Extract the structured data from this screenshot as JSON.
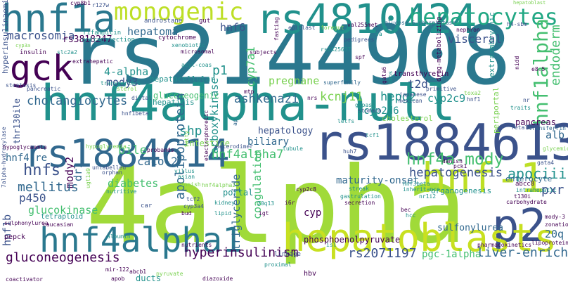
{
  "palette": {
    "dark_purple": "#440154",
    "indigo": "#3b528b",
    "slate_blue": "#31688e",
    "teal_blue": "#2a788e",
    "teal": "#21918c",
    "sea_green": "#22a884",
    "green": "#44bf70",
    "lime": "#7ad151",
    "yellow_green": "#bddf26",
    "yellow": "#fde725"
  },
  "words": [
    {
      "id": "rs2144908",
      "text": "rs2144908",
      "color": "#2a788e"
    },
    {
      "id": "4alpha",
      "text": "4alpha",
      "color": "#a0da39"
    },
    {
      "id": "hnf4alpha-null",
      "text": "hnf4alpha-null",
      "color": "#21918c"
    },
    {
      "id": "rs1884613",
      "text": "rs1884613",
      "color": "#3b528b"
    },
    {
      "id": "rs1884614",
      "text": "rs1884614",
      "color": "#31688e"
    },
    {
      "id": "rs4810424",
      "text": "rs4810424",
      "color": "#21918c"
    },
    {
      "id": "hnf1a",
      "text": "hnf1a",
      "color": "#2a788e"
    },
    {
      "id": "gck",
      "text": "gck",
      "color": "#440154"
    },
    {
      "id": "monogenic",
      "text": "monogenic",
      "color": "#bddf26"
    },
    {
      "id": "hepatocytes",
      "text": "hepatocytes",
      "color": "#22a884"
    },
    {
      "id": "hnf-1",
      "text": "hnf-1",
      "color": "#bddf26"
    },
    {
      "id": "p2",
      "text": "p2",
      "color": "#3b528b"
    },
    {
      "id": "hepatoblasts",
      "text": "hepatoblasts",
      "color": "#c8e020"
    },
    {
      "id": "hnf4alpha1",
      "text": "hnf4alpha1",
      "color": "#2a788e"
    },
    {
      "id": "hnf1alpha",
      "text": "hnf1alpha",
      "color": "#44bf70"
    },
    {
      "id": "endoderm",
      "text": "endoderm",
      "color": "#44bf70"
    },
    {
      "id": "macrosomia",
      "text": "macrosomia",
      "color": "#3b528b"
    },
    {
      "id": "hepatoma",
      "text": "hepatoma",
      "color": "#31688e"
    },
    {
      "id": "hnf6",
      "text": "hnf6",
      "color": "#3b528b"
    },
    {
      "id": "rs3818247",
      "text": "rs3818247",
      "color": "#440154"
    },
    {
      "id": "visceral",
      "text": "visceral",
      "color": "#3b528b"
    },
    {
      "id": "4-alpha",
      "text": "4-alpha",
      "color": "#21918c"
    },
    {
      "id": "p1",
      "text": "p1",
      "color": "#21918c"
    },
    {
      "id": "cyp7a1",
      "text": "cyp7a1",
      "color": "#44bf70"
    },
    {
      "id": "mody3",
      "text": "mody3",
      "color": "#3b528b"
    },
    {
      "id": "t2d",
      "text": "t2d",
      "color": "#3b528b"
    },
    {
      "id": "carboxykinase",
      "text": "carboxykinase",
      "color": "#21918c"
    },
    {
      "id": "pregnane",
      "text": "pregnane",
      "color": "#7ad151"
    },
    {
      "id": "kcnj11",
      "text": "kcnj11",
      "color": "#7ad151"
    },
    {
      "id": "hepg2",
      "text": "hepg2",
      "color": "#21918c"
    },
    {
      "id": "cyp2c9",
      "text": "cyp2c9",
      "color": "#21918c"
    },
    {
      "id": "ashkenazi",
      "text": "ashkenazi",
      "color": "#31688e"
    },
    {
      "id": "cholangiocytes",
      "text": "cholangiocytes",
      "color": "#31688e"
    },
    {
      "id": "gluconeogenic",
      "text": "gluconeogenic",
      "color": "#44bf70"
    },
    {
      "id": "cyp2d6",
      "text": "cyp2d6",
      "color": "#21918c"
    },
    {
      "id": "thr130ile",
      "text": "thr130ile",
      "color": "#3b528b"
    },
    {
      "id": "shp",
      "text": "shp",
      "color": "#21918c"
    },
    {
      "id": "hepatology",
      "text": "hepatology",
      "color": "#3b528b"
    },
    {
      "id": "apolipoprotein",
      "text": "apolipoprotein",
      "color": "#31688e"
    },
    {
      "id": "biliary",
      "text": "biliary",
      "color": "#31688e"
    },
    {
      "id": "bile",
      "text": "bile",
      "color": "#44bf70"
    },
    {
      "id": "hnf4alpha7",
      "text": "hnf4alpha7",
      "color": "#44bf70"
    },
    {
      "id": "hnf4a-mody",
      "text": "hnf4a-mody",
      "color": "#44bf70"
    },
    {
      "id": "apociii",
      "text": "apociii",
      "color": "#21918c"
    },
    {
      "id": "pxr",
      "text": "pxr",
      "color": "#3b528b"
    },
    {
      "id": "hepatogenesis",
      "text": "hepatogenesis",
      "color": "#3b528b"
    },
    {
      "id": "maturity-onset",
      "text": "maturity-onset",
      "color": "#31688e"
    },
    {
      "id": "caco-2",
      "text": "caco-2",
      "color": "#31688e"
    },
    {
      "id": "hnf4-re",
      "text": "hnf4-re",
      "color": "#31688e"
    },
    {
      "id": "hnfs",
      "text": "hnfs",
      "color": "#3b528b"
    },
    {
      "id": "mody2",
      "text": "mody2",
      "color": "#440154"
    },
    {
      "id": "dr1",
      "text": "dr1",
      "color": "#31688e"
    },
    {
      "id": "diabetes",
      "text": "diabetes",
      "color": "#44bf70"
    },
    {
      "id": "mellitus",
      "text": "mellitus",
      "color": "#31688e"
    },
    {
      "id": "p450",
      "text": "p450",
      "color": "#3b528b"
    },
    {
      "id": "glucokinase",
      "text": "glucokinase",
      "color": "#44bf70"
    },
    {
      "id": "coagulation",
      "text": "coagulation",
      "color": "#44bf70"
    },
    {
      "id": "triglyceride",
      "text": "triglyceride",
      "color": "#31688e"
    },
    {
      "id": "hnf1b",
      "text": "hnf1b",
      "color": "#3b528b"
    },
    {
      "id": "gluconeogenesis",
      "text": "gluconeogenesis",
      "color": "#440154"
    },
    {
      "id": "hyperinsulinism",
      "text": "hyperinsulinism",
      "color": "#440154"
    },
    {
      "id": "rs2071197",
      "text": "rs2071197",
      "color": "#3b528b"
    },
    {
      "id": "pgc-1alpha",
      "text": "pgc-1alpha",
      "color": "#44bf70"
    },
    {
      "id": "liver-enriched",
      "text": "liver-enriched",
      "color": "#31688e"
    },
    {
      "id": "20q",
      "text": "20q",
      "color": "#31688e"
    },
    {
      "id": "phosphoenolpyruvate",
      "text": "phosphoenolpyruvate",
      "color": "#440154"
    },
    {
      "id": "cholesterol",
      "text": "cholesterol",
      "color": "#7ad151"
    },
    {
      "id": "sulfonylurea",
      "text": "sulfonylurea",
      "color": "#31688e"
    },
    {
      "id": "enterocyte",
      "text": "enterocyte",
      "color": "#31688e"
    },
    {
      "id": "organogenesis",
      "text": "organogenesis",
      "color": "#21918c"
    },
    {
      "id": "pancreas",
      "text": "pancreas",
      "color": "#440154"
    },
    {
      "id": "alb",
      "text": "alb",
      "color": "#31688e"
    },
    {
      "id": "intestine",
      "text": "intestine",
      "color": "#7ad151"
    },
    {
      "id": "portal",
      "text": "portal",
      "color": "#21918c"
    },
    {
      "id": "cyp",
      "text": "cyp",
      "color": "#440154"
    },
    {
      "id": "hepatocellular",
      "text": "hepatocellular",
      "color": "#21918c"
    },
    {
      "id": "hepatitis",
      "text": "hepatitis",
      "color": "#21918c"
    },
    {
      "id": "extraembryonic",
      "text": "extraembryonic",
      "color": "#21918c"
    },
    {
      "id": "drug-metabolizing",
      "text": "drug-metabolizing",
      "color": "#440154"
    },
    {
      "id": "transthyretin",
      "text": "transthyretin",
      "color": "#440154"
    },
    {
      "id": "periportal",
      "text": "periportal",
      "color": "#7ad151"
    },
    {
      "id": "hyperinsulinaemic",
      "text": "hyperinsulinaemic",
      "color": "#3b528b"
    },
    {
      "id": "cyp8b1",
      "text": "cyp8b1",
      "color": "#440154"
    },
    {
      "id": "r127w",
      "text": "r127w",
      "color": "#3b528b"
    },
    {
      "id": "rifampicin",
      "text": "rifampicin",
      "color": "#21918c"
    },
    {
      "id": "cotransfection",
      "text": "cotransfection",
      "color": "#21918c"
    },
    {
      "id": "androstane",
      "text": "androstane",
      "color": "#3b528b"
    },
    {
      "id": "cytochrome",
      "text": "cytochrome",
      "color": "#440154"
    },
    {
      "id": "gut",
      "text": "gut",
      "color": "#440154"
    },
    {
      "id": "fasting",
      "text": "fasting",
      "color": "#440154"
    },
    {
      "id": "epiblast",
      "text": "epiblast",
      "color": "#3b528b"
    },
    {
      "id": "val255met",
      "text": "val255met",
      "color": "#440154"
    },
    {
      "id": "glucose-6-phosphatase",
      "text": "glucose-6-phosphatase",
      "color": "#31688e"
    },
    {
      "id": "foregut",
      "text": "foregut",
      "color": "#7ad151"
    },
    {
      "id": "pedigrees",
      "text": "pedigrees",
      "color": "#3b528b"
    },
    {
      "id": "rs2425637",
      "text": "rs2425637",
      "color": "#21918c"
    },
    {
      "id": "nephron",
      "text": "nephron",
      "color": "#440154"
    },
    {
      "id": "h4-sbm",
      "text": "h4-sbm",
      "color": "#3b528b"
    },
    {
      "id": "insulin",
      "text": "insulin",
      "color": "#440154"
    },
    {
      "id": "slc2a2",
      "text": "slc2a2",
      "color": "#21918c"
    },
    {
      "id": "xenobiotic",
      "text": "xenobiotic",
      "color": "#21918c"
    },
    {
      "id": "microsomal",
      "text": "microsomal",
      "color": "#440154"
    },
    {
      "id": "acyl-coas",
      "text": "acyl-coas",
      "color": "#21918c"
    },
    {
      "id": "subjects",
      "text": "subjects",
      "color": "#440154"
    },
    {
      "id": "extrahepatic",
      "text": "extrahepatic",
      "color": "#440154"
    },
    {
      "id": "transporters",
      "text": "transporters",
      "color": "#21918c"
    },
    {
      "id": "sterol",
      "text": "sterol",
      "color": "#7ad151"
    },
    {
      "id": "mtp",
      "text": "mtp",
      "color": "#440154"
    },
    {
      "id": "superfamily",
      "text": "superfamily",
      "color": "#31688e"
    },
    {
      "id": "steatosis",
      "text": "steatosis",
      "color": "#3b528b"
    },
    {
      "id": "pancreatic",
      "text": "pancreatic",
      "color": "#3b528b"
    },
    {
      "id": "distal",
      "text": "distal",
      "color": "#3b528b"
    },
    {
      "id": "nrs",
      "text": "nrs",
      "color": "#440154"
    },
    {
      "id": "japanese",
      "text": "japanese",
      "color": "#3b528b"
    },
    {
      "id": "mexican",
      "text": "mexican",
      "color": "#3b528b"
    },
    {
      "id": "hnf1",
      "text": "hnf1",
      "color": "#3b528b"
    },
    {
      "id": "toxa2",
      "text": "toxa2",
      "color": "#7ad151"
    },
    {
      "id": "primitive",
      "text": "primitive",
      "color": "#3b528b"
    },
    {
      "id": "traits",
      "text": "traits",
      "color": "#21918c"
    },
    {
      "id": "nr",
      "text": "nr",
      "color": "#3b528b"
    },
    {
      "id": "7alpha-hydroxylase",
      "text": "7alpha-hydroxylase",
      "color": "#3b528b"
    },
    {
      "id": "hnf1beta",
      "text": "hnf1beta",
      "color": "#3b528b"
    },
    {
      "id": "electrophoretic",
      "text": "electrophoretic",
      "color": "#440154"
    },
    {
      "id": "ap",
      "text": "ap",
      "color": "#31688e"
    },
    {
      "id": "g6pase",
      "text": "g6pase",
      "color": "#21918c"
    },
    {
      "id": "stomach",
      "text": "stomach",
      "color": "#3b528b"
    },
    {
      "id": "fetal",
      "text": "fetal",
      "color": "#3b528b"
    },
    {
      "id": "transferrin",
      "text": "transferrin",
      "color": "#31688e"
    },
    {
      "id": "fatty",
      "text": "fatty",
      "color": "#7ad151"
    },
    {
      "id": "letfs",
      "text": "letfs",
      "color": "#21918c"
    },
    {
      "id": "tcf1",
      "text": "tcf1",
      "color": "#21918c"
    },
    {
      "id": "glycemic",
      "text": "glycemic",
      "color": "#7ad151"
    },
    {
      "id": "hypoglycaemia",
      "text": "hypoglycaemia",
      "color": "#440154"
    },
    {
      "id": "hypoglycemia",
      "text": "hypoglycemia",
      "color": "#7ad151"
    },
    {
      "id": "probands",
      "text": "probands",
      "color": "#440154"
    },
    {
      "id": "heterodimer",
      "text": "heterodimer",
      "color": "#3b528b"
    },
    {
      "id": "huh7",
      "text": "huh7",
      "color": "#3b528b"
    },
    {
      "id": "tubule",
      "text": "tubule",
      "color": "#21918c"
    },
    {
      "id": "gata4",
      "text": "gata4",
      "color": "#3b528b"
    },
    {
      "id": "unlabelled",
      "text": "unlabelled",
      "color": "#3b528b"
    },
    {
      "id": "orphan",
      "text": "orphan",
      "color": "#3b528b"
    },
    {
      "id": "streak",
      "text": "streak",
      "color": "#21918c"
    },
    {
      "id": "danish",
      "text": "danish",
      "color": "#440154"
    },
    {
      "id": "pck1",
      "text": "pck1",
      "color": "#440154"
    },
    {
      "id": "hnf3beta",
      "text": "hnf3beta",
      "color": "#21918c"
    },
    {
      "id": "inheritance",
      "text": "inheritance",
      "color": "#21918c"
    },
    {
      "id": "abcc8",
      "text": "abcc8",
      "color": "#440154"
    },
    {
      "id": "intrahepatic",
      "text": "intrahepatic",
      "color": "#21918c"
    },
    {
      "id": "t130i",
      "text": "t130i",
      "color": "#440154"
    },
    {
      "id": "mody-3",
      "text": "mody-3",
      "color": "#440154"
    },
    {
      "id": "zonation",
      "text": "zonation",
      "color": "#440154"
    },
    {
      "id": "villus",
      "text": "villus",
      "color": "#21918c"
    },
    {
      "id": "asian",
      "text": "asian",
      "color": "#21918c"
    },
    {
      "id": "nutritive",
      "text": "nutritive",
      "color": "#21918c"
    },
    {
      "id": "finnish",
      "text": "finnish",
      "color": "#7ad151"
    },
    {
      "id": "hnf4alpha2",
      "text": "hnf4alpha2",
      "color": "#7ad151"
    },
    {
      "id": "tcf2",
      "text": "tcf2",
      "color": "#3b528b"
    },
    {
      "id": "cyp3a4",
      "text": "cyp3a4",
      "color": "#3b528b"
    },
    {
      "id": "kidney",
      "text": "kidney",
      "color": "#21918c"
    },
    {
      "id": "20q13",
      "text": "20q13",
      "color": "#21918c"
    },
    {
      "id": "i6r",
      "text": "i6r",
      "color": "#440154"
    },
    {
      "id": "lipid",
      "text": "lipid",
      "color": "#21918c"
    },
    {
      "id": "igt",
      "text": "igt",
      "color": "#440154"
    },
    {
      "id": "gastrulation",
      "text": "gastrulation",
      "color": "#21918c"
    },
    {
      "id": "secretion",
      "text": "secretion",
      "color": "#440154"
    },
    {
      "id": "car",
      "text": "car",
      "color": "#3b528b"
    },
    {
      "id": "bud",
      "text": "bud",
      "color": "#440154"
    },
    {
      "id": "hcc",
      "text": "hcc",
      "color": "#21918c"
    },
    {
      "id": "nr1i2",
      "text": "nr1i2",
      "color": "#21918c"
    },
    {
      "id": "cyp2c8",
      "text": "cyp2c8",
      "color": "#440154"
    },
    {
      "id": "bec",
      "text": "bec",
      "color": "#440154"
    },
    {
      "id": "tetraploid",
      "text": "tetraploid",
      "color": "#21918c"
    },
    {
      "id": "caucasian",
      "text": "caucasian",
      "color": "#440154"
    },
    {
      "id": "sulphonylurea",
      "text": "sulphonylurea",
      "color": "#440154"
    },
    {
      "id": "ugt1a9",
      "text": "ugt1a9",
      "color": "#7ad151"
    },
    {
      "id": "pepck",
      "text": "pepck",
      "color": "#440154"
    },
    {
      "id": "albumin",
      "text": "albumin",
      "color": "#21918c"
    },
    {
      "id": "nutrients",
      "text": "nutrients",
      "color": "#440154"
    },
    {
      "id": "linkage",
      "text": "linkage",
      "color": "#3b528b"
    },
    {
      "id": "isl",
      "text": "isl",
      "color": "#21918c"
    },
    {
      "id": "pharmacokinetics",
      "text": "pharmacokinetics",
      "color": "#440154"
    },
    {
      "id": "lipoproteins",
      "text": "lipoproteins",
      "color": "#440154"
    },
    {
      "id": "coactivator",
      "text": "coactivator",
      "color": "#440154"
    },
    {
      "id": "mir-122",
      "text": "mir-122",
      "color": "#440154"
    },
    {
      "id": "abcb1",
      "text": "abcb1",
      "color": "#440154"
    },
    {
      "id": "apob",
      "text": "apob",
      "color": "#440154"
    },
    {
      "id": "ducts",
      "text": "ducts",
      "color": "#21918c"
    },
    {
      "id": "pyruvate",
      "text": "pyruvate",
      "color": "#7ad151"
    },
    {
      "id": "diazoxide",
      "text": "diazoxide",
      "color": "#440154"
    },
    {
      "id": "proximal",
      "text": "proximal",
      "color": "#21918c"
    },
    {
      "id": "hbv",
      "text": "hbv",
      "color": "#440154"
    },
    {
      "id": "e8.5",
      "text": "e8.5",
      "color": "#440154"
    },
    {
      "id": "nidd",
      "text": "nidd",
      "color": "#440154"
    },
    {
      "id": "gata6",
      "text": "gata6",
      "color": "#440154"
    },
    {
      "id": "snps",
      "text": "snps",
      "color": "#21918c"
    },
    {
      "id": "carbohydrate",
      "text": "carbohydrate",
      "color": "#440154"
    },
    {
      "id": "4a",
      "text": "4a",
      "color": "#21918c"
    },
    {
      "id": "spf",
      "text": "spf",
      "color": "#440154"
    },
    {
      "id": "cyp3a",
      "text": "cyp3a",
      "color": "#7ad151"
    },
    {
      "id": "hepatoblast",
      "text": "hepatoblast",
      "color": "#7ad151"
    }
  ]
}
